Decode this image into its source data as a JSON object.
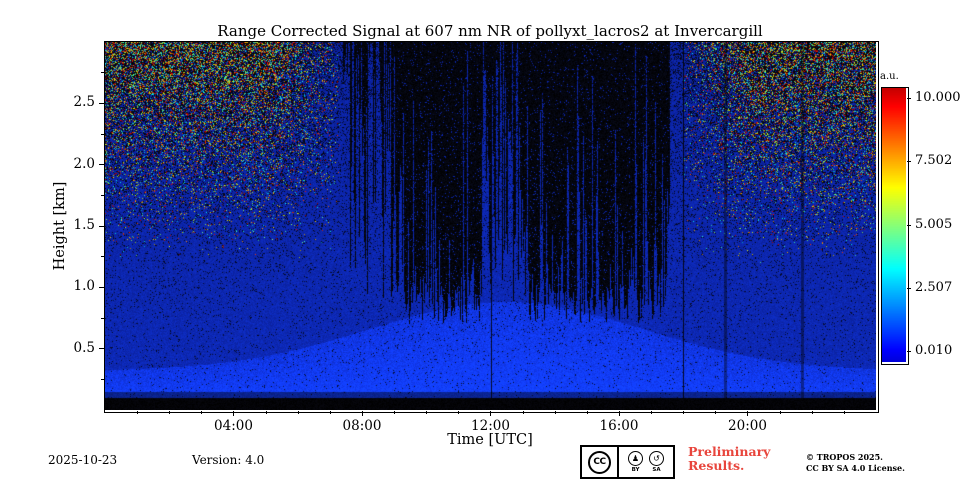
{
  "chart_data": {
    "type": "heatmap",
    "title": "Range Corrected Signal at 607 nm NR of pollyxt_lacros2 at Invercargill",
    "xlabel": "Time [UTC]",
    "ylabel": "Height [km]",
    "x_range_hours": [
      0,
      24
    ],
    "x_tick_hours": [
      4,
      8,
      12,
      16,
      20
    ],
    "x_tick_labels": [
      "04:00",
      "08:00",
      "12:00",
      "16:00",
      "20:00"
    ],
    "y_range_km": [
      0,
      3.0
    ],
    "y_tick_values": [
      0.5,
      1.0,
      1.5,
      2.0,
      2.5
    ],
    "y_tick_labels": [
      "0.5",
      "1.0",
      "1.5",
      "2.0",
      "2.5"
    ],
    "grid": false,
    "legend": "none",
    "colorbar": {
      "label": "a.u.",
      "position": "right",
      "vmin": 0.01,
      "vmax": 10.0,
      "tick_values": [
        10.0,
        7.502,
        5.005,
        2.507,
        0.01
      ],
      "tick_labels": [
        "10.000",
        "7.502",
        "5.005",
        "2.507",
        "0.010"
      ],
      "colormap": "jet"
    },
    "regions": {
      "surface_black_band_top_km": 0.1,
      "boundary_layer": {
        "base_km": 0.32,
        "peak_km": 0.88,
        "peak_hour": 12.5,
        "width_hours": 6.0
      },
      "cloud_streak_hours": [
        7.4,
        17.6
      ],
      "dense_cloud_hours": [
        [
          8.9,
          11.7
        ],
        [
          13.05,
          17.5
        ]
      ],
      "noise_speckle_edge_hours": [
        [
          0,
          7.3
        ],
        [
          18.0,
          24
        ]
      ],
      "noise_speckle_min_km": 1.2,
      "gap_line_hours": [
        12,
        18
      ],
      "faint_streak_hours": [
        19.3,
        21.7
      ]
    }
  },
  "footer": {
    "date": "2025-10-23",
    "version": "Version: 4.0",
    "preliminary_line1": "Preliminary",
    "preliminary_line2": "Results.",
    "copyright_line1": "© TROPOS 2025.",
    "copyright_line2": "CC BY SA 4.0 License.",
    "cc_badge": {
      "cc": "CC",
      "by": "BY",
      "sa": "SA",
      "by_icon": "♟",
      "sa_icon": "↺"
    }
  },
  "colors": {
    "preliminary_red": "#e8453c",
    "background_blue": "#0d33d8",
    "axis_black": "#000000"
  }
}
